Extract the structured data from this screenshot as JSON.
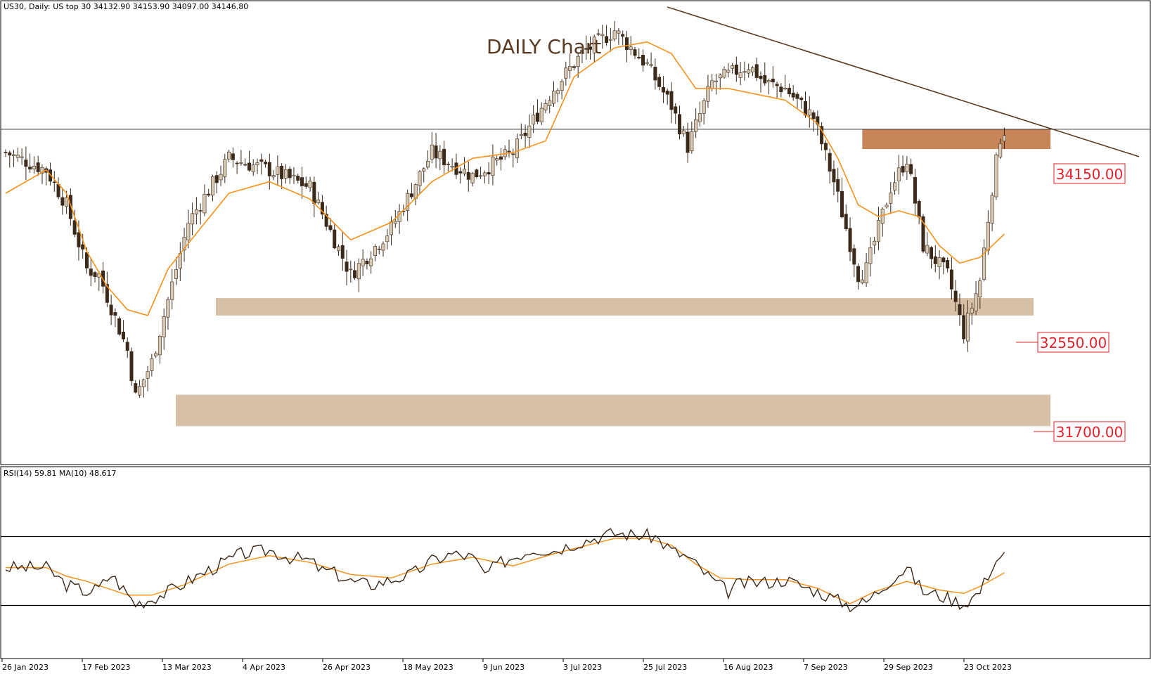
{
  "header": {
    "symbol_info": "US30, Daily:  US top 30  34132.90 34153.90 34097.00 34146.80"
  },
  "annotation": {
    "title": "DAILY Chart"
  },
  "levels": [
    {
      "label": "34150.00"
    },
    {
      "label": "32550.00"
    },
    {
      "label": "31700.00"
    }
  ],
  "rsi": {
    "label": "RSI(14) 59.81 MA(10) 48.617"
  },
  "colors": {
    "bull_candle": "#d8c9b4",
    "bear_candle": "#3b2a1a",
    "ma_line": "#f5921e",
    "trendline": "#5a3a22",
    "resistance_zone": "#c8855a",
    "support_zone": "#d7c1a6",
    "level_text": "#e8202a",
    "rsi_line": "#3b2a1a"
  },
  "chart_data": [
    {
      "type": "candlestick",
      "title": "DAILY Chart",
      "y_unit": "index points",
      "ylim": [
        31300,
        35200
      ],
      "x_dates": [
        "26 Jan 2023",
        "17 Feb 2023",
        "13 Mar 2023",
        "4 Apr 2023",
        "26 Apr 2023",
        "18 May 2023",
        "9 Jun 2023",
        "3 Jul 2023",
        "25 Jul 2023",
        "16 Aug 2023",
        "7 Sep 2023",
        "29 Sep 2023",
        "23 Oct 2023"
      ],
      "close_path": [
        [
          0,
          33950
        ],
        [
          10,
          33800
        ],
        [
          15,
          33500
        ],
        [
          20,
          32950
        ],
        [
          23,
          32900
        ],
        [
          30,
          32250
        ],
        [
          32,
          31850
        ],
        [
          36,
          32150
        ],
        [
          45,
          33350
        ],
        [
          55,
          33900
        ],
        [
          65,
          33800
        ],
        [
          75,
          33650
        ],
        [
          85,
          32900
        ],
        [
          95,
          33300
        ],
        [
          105,
          33950
        ],
        [
          115,
          33750
        ],
        [
          125,
          33950
        ],
        [
          135,
          34500
        ],
        [
          142,
          34800
        ],
        [
          150,
          35000
        ],
        [
          158,
          34700
        ],
        [
          164,
          34350
        ],
        [
          168,
          34000
        ],
        [
          174,
          34550
        ],
        [
          183,
          34700
        ],
        [
          187,
          34550
        ],
        [
          192,
          34500
        ],
        [
          199,
          34250
        ],
        [
          204,
          33700
        ],
        [
          210,
          32900
        ],
        [
          212,
          32950
        ],
        [
          218,
          33650
        ],
        [
          222,
          33900
        ],
        [
          226,
          33150
        ],
        [
          232,
          32900
        ],
        [
          236,
          32400
        ],
        [
          240,
          32850
        ],
        [
          243,
          33650
        ],
        [
          245,
          34080
        ],
        [
          246,
          34140
        ]
      ],
      "moving_average": {
        "name": "MA",
        "values": [
          [
            0,
            33600
          ],
          [
            10,
            33800
          ],
          [
            15,
            33600
          ],
          [
            20,
            33100
          ],
          [
            25,
            32800
          ],
          [
            30,
            32600
          ],
          [
            35,
            32550
          ],
          [
            40,
            32950
          ],
          [
            48,
            33300
          ],
          [
            55,
            33600
          ],
          [
            65,
            33700
          ],
          [
            75,
            33550
          ],
          [
            85,
            33200
          ],
          [
            95,
            33350
          ],
          [
            105,
            33700
          ],
          [
            115,
            33900
          ],
          [
            125,
            33950
          ],
          [
            133,
            34050
          ],
          [
            140,
            34600
          ],
          [
            150,
            34850
          ],
          [
            158,
            34900
          ],
          [
            164,
            34800
          ],
          [
            170,
            34500
          ],
          [
            178,
            34500
          ],
          [
            185,
            34450
          ],
          [
            192,
            34400
          ],
          [
            200,
            34200
          ],
          [
            205,
            33900
          ],
          [
            210,
            33500
          ],
          [
            215,
            33400
          ],
          [
            220,
            33450
          ],
          [
            225,
            33400
          ],
          [
            230,
            33150
          ],
          [
            235,
            33000
          ],
          [
            240,
            33050
          ],
          [
            246,
            33250
          ]
        ]
      },
      "levels": [
        34150,
        32550,
        31700
      ],
      "zones": [
        {
          "kind": "resistance",
          "low": 33980,
          "high": 34150
        },
        {
          "kind": "support",
          "low": 32550,
          "high": 32700
        },
        {
          "kind": "support",
          "low": 31600,
          "high": 31870
        }
      ],
      "trendline": [
        [
          163,
          35200
        ],
        [
          276,
          33950
        ]
      ]
    },
    {
      "type": "line",
      "title": "RSI(14) 59.81 MA(10) 48.617",
      "ylim": [
        0,
        100
      ],
      "levels": [
        70,
        30
      ],
      "series": [
        {
          "name": "RSI(14)",
          "values": [
            [
              0,
              52
            ],
            [
              10,
              52
            ],
            [
              15,
              42
            ],
            [
              20,
              38
            ],
            [
              23,
              40
            ],
            [
              26,
              48
            ],
            [
              32,
              31
            ],
            [
              36,
              34
            ],
            [
              40,
              38
            ],
            [
              48,
              48
            ],
            [
              58,
              60
            ],
            [
              65,
              62
            ],
            [
              70,
              58
            ],
            [
              75,
              56
            ],
            [
              78,
              50
            ],
            [
              80,
              50
            ],
            [
              85,
              44
            ],
            [
              90,
              42
            ],
            [
              95,
              45
            ],
            [
              100,
              48
            ],
            [
              105,
              56
            ],
            [
              110,
              60
            ],
            [
              115,
              58
            ],
            [
              118,
              48
            ],
            [
              122,
              55
            ],
            [
              130,
              63
            ],
            [
              135,
              62
            ],
            [
              140,
              66
            ],
            [
              148,
              71
            ],
            [
              150,
              72
            ],
            [
              155,
              71
            ],
            [
              160,
              70
            ],
            [
              164,
              62
            ],
            [
              168,
              58
            ],
            [
              174,
              45
            ],
            [
              178,
              38
            ],
            [
              180,
              42
            ],
            [
              183,
              43
            ],
            [
              190,
              44
            ],
            [
              192,
              45
            ],
            [
              200,
              38
            ],
            [
              204,
              34
            ],
            [
              208,
              30
            ],
            [
              212,
              32
            ],
            [
              218,
              45
            ],
            [
              222,
              52
            ],
            [
              226,
              38
            ],
            [
              230,
              36
            ],
            [
              236,
              31
            ],
            [
              240,
              38
            ],
            [
              243,
              53
            ],
            [
              245,
              59
            ]
          ]
        },
        {
          "name": "MA(10)",
          "values": [
            [
              0,
              52
            ],
            [
              10,
              52
            ],
            [
              15,
              47
            ],
            [
              20,
              44
            ],
            [
              30,
              36
            ],
            [
              36,
              36
            ],
            [
              44,
              42
            ],
            [
              55,
              54
            ],
            [
              65,
              59
            ],
            [
              75,
              55
            ],
            [
              85,
              48
            ],
            [
              95,
              46
            ],
            [
              105,
              54
            ],
            [
              115,
              58
            ],
            [
              125,
              53
            ],
            [
              135,
              60
            ],
            [
              145,
              66
            ],
            [
              150,
              69
            ],
            [
              158,
              69
            ],
            [
              164,
              65
            ],
            [
              170,
              54
            ],
            [
              176,
              46
            ],
            [
              183,
              45
            ],
            [
              192,
              45
            ],
            [
              200,
              40
            ],
            [
              208,
              31
            ],
            [
              214,
              38
            ],
            [
              222,
              44
            ],
            [
              230,
              39
            ],
            [
              236,
              37
            ],
            [
              240,
              41
            ],
            [
              246,
              49
            ]
          ]
        }
      ]
    }
  ]
}
